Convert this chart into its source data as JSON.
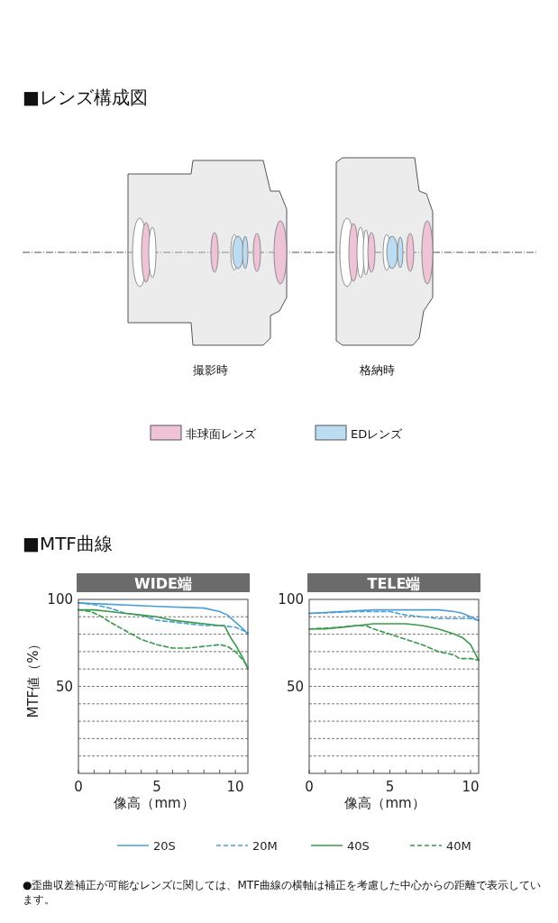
{
  "chart_data": [
    {
      "type": "other",
      "title": "■レンズ構成図",
      "annotations": [
        "撮影時",
        "格納時",
        "非球面レンズ",
        "EDレンズ"
      ]
    },
    {
      "type": "line",
      "title": "WIDE端",
      "xlabel": "像高（mm）",
      "ylabel": "MTF値（%）",
      "annotations": [
        "■MTF曲線"
      ],
      "xlim": [
        0,
        10.8
      ],
      "ylim": [
        0,
        100
      ],
      "xticks": [
        0,
        {
          "value": 1,
          "label": null
        },
        {
          "value": 2,
          "label": null
        },
        {
          "value": 3,
          "label": null
        },
        {
          "value": 4,
          "label": null
        },
        5,
        {
          "value": 6,
          "label": null
        },
        {
          "value": 7,
          "label": null
        },
        {
          "value": 8,
          "label": null
        },
        {
          "value": 9,
          "label": null
        },
        10
      ],
      "yticks": [
        {
          "value": 0,
          "label": null
        },
        {
          "value": 10,
          "label": null
        },
        {
          "value": 20,
          "label": null
        },
        {
          "value": 30,
          "label": null
        },
        {
          "value": 40,
          "label": null
        },
        {
          "value": 50,
          "label": "50"
        },
        {
          "value": 60,
          "label": null
        },
        {
          "value": 70,
          "label": null
        },
        {
          "value": 80,
          "label": null
        },
        {
          "value": 90,
          "label": null
        },
        {
          "value": 100,
          "label": "100"
        }
      ],
      "grid": "y",
      "legend": "bottom",
      "series": [
        {
          "name": "20S",
          "color": "#4a9fd8",
          "line_style": "solid",
          "x": [
            0,
            5,
            8,
            9,
            9.5,
            10,
            10.5,
            10.8
          ],
          "values": [
            98,
            96,
            95,
            93,
            91,
            87,
            83,
            80
          ]
        },
        {
          "name": "20M",
          "color": "#4a9fd8",
          "line_style": "dashed",
          "x": [
            0,
            1,
            2,
            3,
            4,
            5,
            6,
            7,
            8,
            9,
            10,
            10.8
          ],
          "values": [
            98,
            97,
            95,
            92,
            91,
            88,
            87,
            86,
            85,
            85,
            84,
            81
          ]
        },
        {
          "name": "40S",
          "color": "#3a9a4a",
          "line_style": "solid",
          "x": [
            0,
            1,
            2,
            3,
            4,
            5,
            6,
            7,
            8,
            9,
            9.3,
            9.7,
            10,
            10.5,
            10.8
          ],
          "values": [
            94,
            94,
            93,
            92,
            91,
            90,
            88,
            87,
            86,
            85,
            85,
            78,
            74,
            66,
            60
          ]
        },
        {
          "name": "40M",
          "color": "#3a9a4a",
          "line_style": "dashed",
          "x": [
            0,
            0.8,
            1.5,
            2,
            3,
            4,
            5,
            6,
            7,
            8,
            9,
            9.5,
            10,
            10.5,
            10.8
          ],
          "values": [
            94,
            93,
            90,
            87,
            82,
            77,
            74,
            72,
            72,
            73,
            74,
            73,
            70,
            65,
            61
          ]
        }
      ]
    },
    {
      "type": "line",
      "title": "TELE端",
      "xlabel": "像高（mm）",
      "annotations": [
        "●歪曲収差補正が可能なレンズに関しては、MTF曲線の横軸は補正を考慮した中心からの距離で表示しています。"
      ],
      "xlim": [
        0,
        10.5
      ],
      "ylim": [
        0,
        100
      ],
      "xticks": [
        {
          "value": 0,
          "label": "0"
        },
        {
          "value": 1,
          "label": null
        },
        {
          "value": 2,
          "label": null
        },
        {
          "value": 3,
          "label": null
        },
        {
          "value": 4,
          "label": null
        },
        5,
        {
          "value": 6,
          "label": null
        },
        {
          "value": 7,
          "label": null
        },
        {
          "value": 8,
          "label": null
        },
        {
          "value": 9,
          "label": null
        },
        10
      ],
      "yticks": [
        {
          "value": 0,
          "label": null
        },
        {
          "value": 10,
          "label": null
        },
        {
          "value": 20,
          "label": null
        },
        {
          "value": 30,
          "label": null
        },
        {
          "value": 40,
          "label": null
        },
        {
          "value": 50,
          "label": "50"
        },
        {
          "value": 60,
          "label": null
        },
        {
          "value": 70,
          "label": null
        },
        {
          "value": 80,
          "label": null
        },
        {
          "value": 90,
          "label": null
        },
        {
          "value": 100,
          "label": "100"
        }
      ],
      "grid": "y",
      "legend": "bottom",
      "series": [
        {
          "name": "20S",
          "color": "#4a9fd8",
          "line_style": "solid",
          "x": [
            0,
            2,
            4,
            5,
            7,
            8,
            9,
            9.5,
            10,
            10.5
          ],
          "values": [
            92,
            93,
            94,
            94,
            94,
            94,
            93,
            92,
            90,
            88
          ]
        },
        {
          "name": "20M",
          "color": "#4a9fd8",
          "line_style": "dashed",
          "x": [
            0,
            3,
            4,
            5,
            6,
            7,
            8,
            9,
            9.5,
            10,
            10.5
          ],
          "values": [
            92,
            93,
            93,
            93,
            91,
            90,
            89,
            89,
            89,
            89,
            88
          ]
        },
        {
          "name": "40S",
          "color": "#3a9a4a",
          "line_style": "solid",
          "x": [
            0,
            1,
            2,
            3,
            4,
            5,
            6,
            7,
            8,
            9,
            9.5,
            10,
            10.5
          ],
          "values": [
            83,
            83,
            84,
            85,
            86,
            86,
            86,
            85,
            83,
            80,
            78,
            74,
            65
          ]
        },
        {
          "name": "40M",
          "color": "#3a9a4a",
          "line_style": "dashed",
          "x": [
            0,
            2,
            3,
            3.5,
            4,
            5,
            6,
            7,
            8,
            9,
            9.3,
            10,
            10.5
          ],
          "values": [
            83,
            84,
            85,
            85,
            83,
            80,
            77,
            74,
            70,
            68,
            66,
            66,
            65
          ]
        }
      ]
    }
  ]
}
